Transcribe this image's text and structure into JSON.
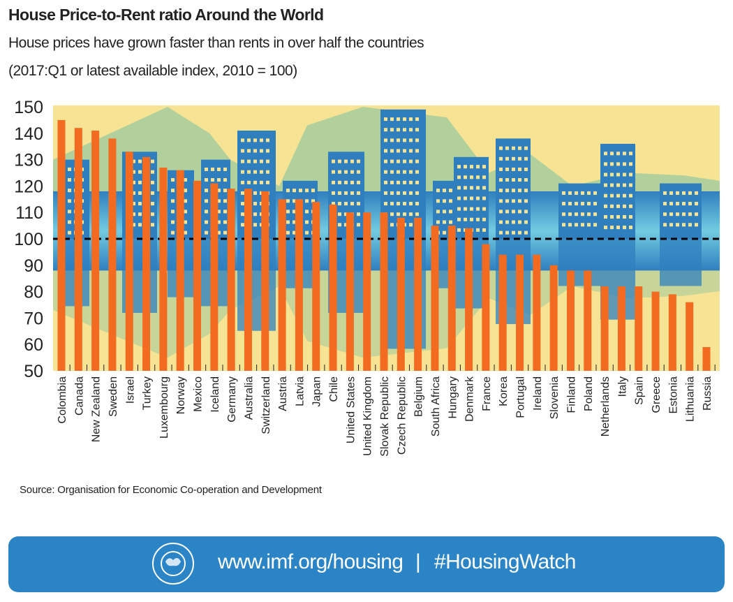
{
  "header": {
    "title": "House Price-to-Rent ratio Around the World",
    "subtitle": "House prices have grown faster than rents in over half the countries",
    "note": "(2017:Q1 or latest available index, 2010 = 100)"
  },
  "chart_data": {
    "type": "bar",
    "title": "House Price-to-Rent ratio Around the World",
    "ylim": [
      50,
      150
    ],
    "yticks": [
      50,
      60,
      70,
      80,
      90,
      100,
      110,
      120,
      130,
      140,
      150
    ],
    "reference_line": 100,
    "grid": false,
    "bar_color": "#f26b21",
    "categories": [
      "Colombia",
      "Canada",
      "New Zealand",
      "Sweden",
      "Israel",
      "Turkey",
      "Luxembourg",
      "Norway",
      "Mexico",
      "Iceland",
      "Germany",
      "Australia",
      "Switzerland",
      "Austria",
      "Latvia",
      "Japan",
      "Chile",
      "United States",
      "United Kingdom",
      "Slovak Republic",
      "Czech Republic",
      "Belgium",
      "South Africa",
      "Hungary",
      "Denmark",
      "France",
      "Korea",
      "Portugal",
      "Ireland",
      "Slovenia",
      "Finland",
      "Poland",
      "Netherlands",
      "Italy",
      "Spain",
      "Greece",
      "Estonia",
      "Lithuania",
      "Russia"
    ],
    "values": [
      145,
      142,
      141,
      138,
      133,
      131,
      127,
      126,
      122,
      121,
      119,
      119,
      118,
      115,
      115,
      114,
      113,
      110,
      110,
      110,
      108,
      108,
      105,
      105,
      104,
      98,
      94,
      94,
      94,
      90,
      88,
      88,
      82,
      82,
      82,
      80,
      79,
      76,
      59
    ]
  },
  "footer": {
    "source": "Source: Organisation for Economic Co-operation and Development",
    "url": "www.imf.org/housing",
    "separator": "|",
    "hashtag": "#HousingWatch",
    "logo_text": "INTERNATIONAL MONETARY FUND"
  },
  "colors": {
    "background": "#f7e394",
    "skyline_green": "#a6cc9c",
    "skyline_blue": "#2f7fbf",
    "banner": "#2a84c6"
  }
}
